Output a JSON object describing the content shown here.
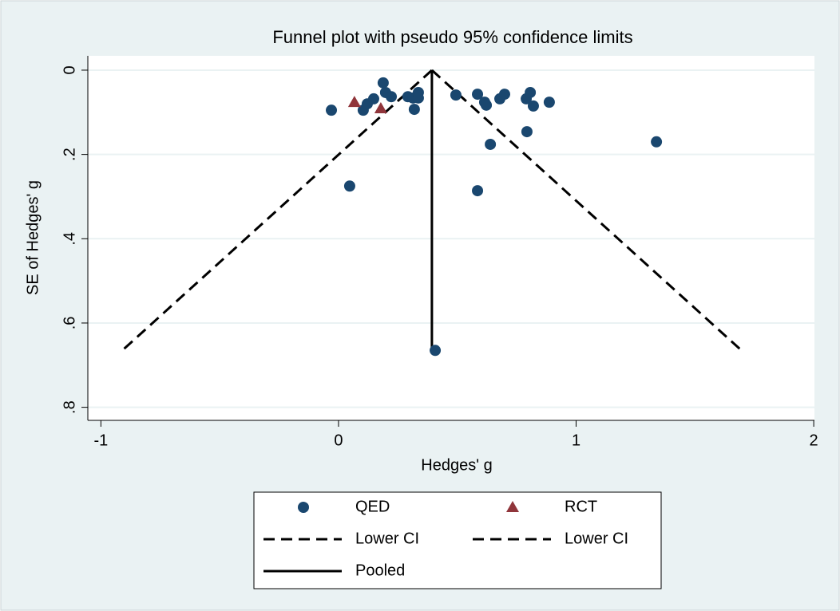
{
  "chart_data": {
    "type": "scatter",
    "title": "Funnel plot with pseudo 95% confidence limits",
    "x_label": "Hedges' g",
    "y_label": "SE of Hedges' g",
    "xlim": [
      -1.055,
      2.003
    ],
    "ylim": [
      -0.034,
      0.831
    ],
    "y_inverted": true,
    "xticks": [
      -1,
      0,
      1,
      2
    ],
    "yticks": [
      0,
      {
        "value": 0.2,
        "label": ".2"
      },
      {
        "value": 0.4,
        "label": ".4"
      },
      {
        "value": 0.6,
        "label": ".6"
      },
      {
        "value": 0.8,
        "label": ".8"
      }
    ],
    "grid": true,
    "series": [
      {
        "name": "QED",
        "color": "#1a476f",
        "marker": "circle",
        "x": [
          -0.03,
          0.104,
          0.121,
          0.148,
          0.188,
          0.198,
          0.222,
          0.292,
          0.313,
          0.319,
          0.336,
          0.336,
          0.494,
          0.585,
          0.615,
          0.622,
          0.679,
          0.699,
          0.79,
          0.807,
          0.82,
          0.887,
          0.639,
          0.793,
          1.338,
          0.047,
          0.585,
          0.407
        ],
        "y": [
          0.095,
          0.095,
          0.08,
          0.068,
          0.03,
          0.053,
          0.063,
          0.063,
          0.066,
          0.093,
          0.053,
          0.066,
          0.059,
          0.057,
          0.076,
          0.083,
          0.068,
          0.057,
          0.068,
          0.053,
          0.085,
          0.076,
          0.176,
          0.146,
          0.17,
          0.275,
          0.286,
          0.665
        ]
      },
      {
        "name": "RCT",
        "color": "#90353b",
        "marker": "triangle",
        "x": [
          0.067,
          0.178
        ],
        "y": [
          0.076,
          0.091
        ]
      },
      {
        "name": "Lower CI",
        "color": "#000000",
        "line": "dashed",
        "x": [
          0.393,
          -0.908
        ],
        "y": [
          0,
          0.664
        ]
      },
      {
        "name": "Lower CI",
        "color": "#000000",
        "line": "dashed",
        "x": [
          0.393,
          1.694
        ],
        "y": [
          0,
          0.664
        ]
      },
      {
        "name": "Pooled",
        "color": "#000000",
        "line": "solid",
        "x": [
          0.393,
          0.393
        ],
        "y": [
          0,
          0.664
        ]
      }
    ]
  }
}
